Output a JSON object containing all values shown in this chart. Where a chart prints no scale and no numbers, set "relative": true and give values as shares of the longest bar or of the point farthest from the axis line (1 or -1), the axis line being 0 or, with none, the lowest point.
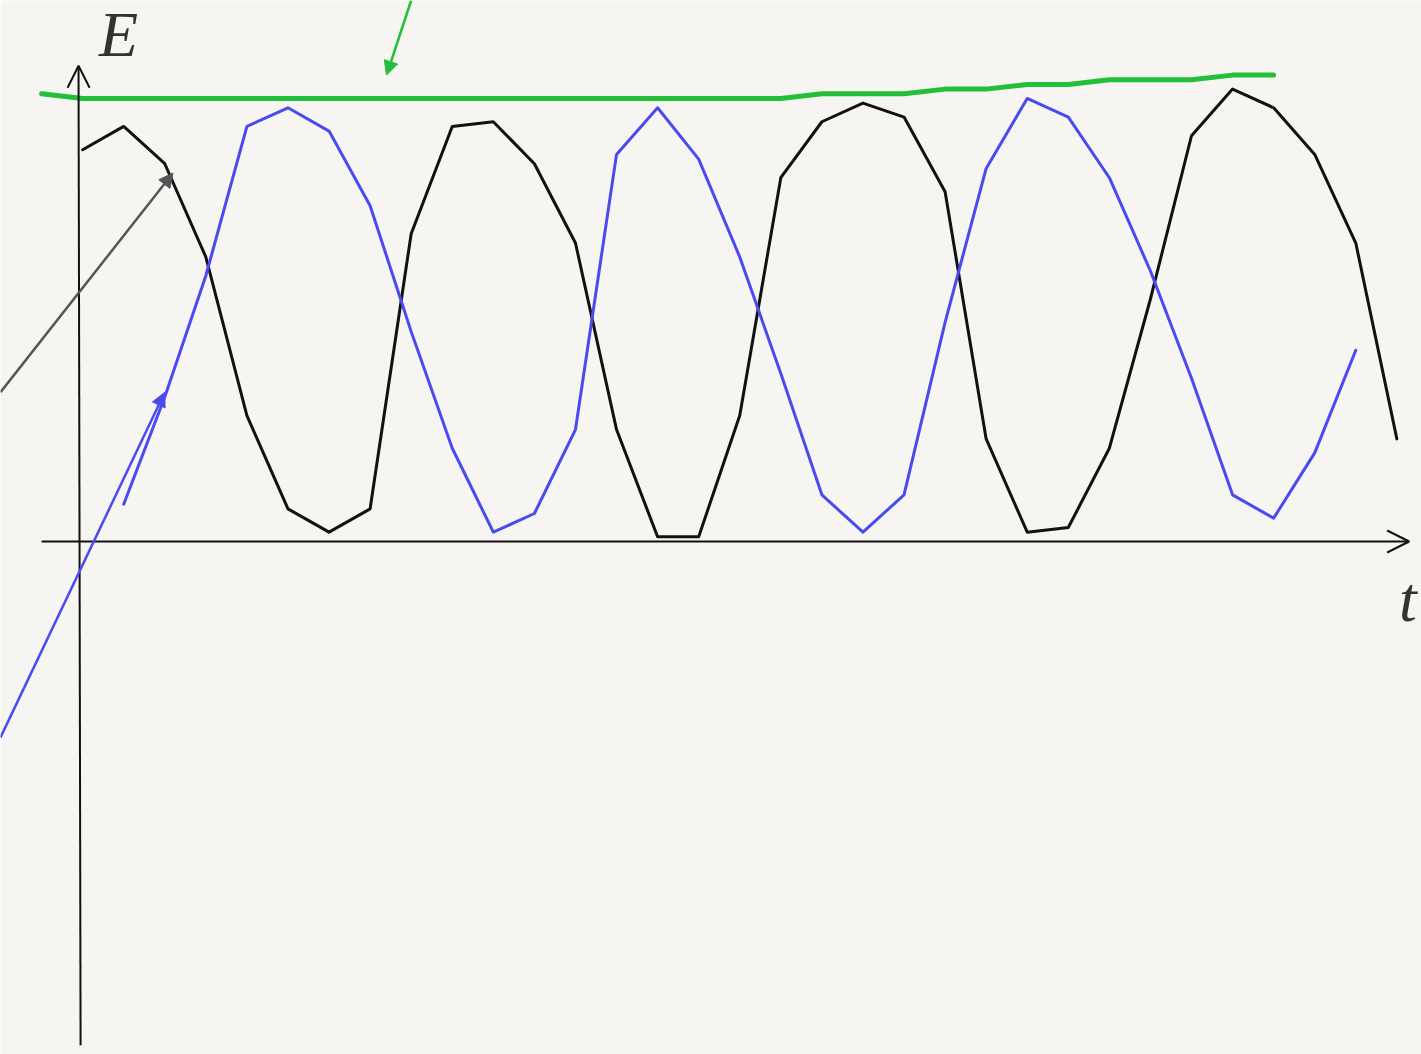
{
  "chart_data": {
    "type": "line",
    "relative": true,
    "xlabel": "t",
    "ylabel": "E",
    "line_style": "solid",
    "categories": [
      null,
      null,
      null,
      null,
      null,
      null,
      null,
      null,
      null,
      null,
      null,
      null,
      null,
      null,
      null,
      null,
      null,
      null,
      null,
      null,
      null,
      null,
      null,
      null,
      null,
      null,
      null,
      null,
      null,
      null,
      null,
      null,
      null,
      null
    ],
    "series": [
      {
        "color": "#111111",
        "values": [
          null,
          0.84,
          0.89,
          0.81,
          0.61,
          0.27,
          0.07,
          0.02,
          0.07,
          0.66,
          0.89,
          0.9,
          0.81,
          0.64,
          0.24,
          0.01,
          0.01,
          0.27,
          0.78,
          0.9,
          0.94,
          0.91,
          0.75,
          0.22,
          0.02,
          0.03,
          0.2,
          0.52,
          0.87,
          0.97,
          0.93,
          0.83,
          0.64,
          0.22
        ]
      },
      {
        "color": "#4a4af0",
        "values": [
          null,
          null,
          0.08,
          0.31,
          0.57,
          0.89,
          0.93,
          0.88,
          0.72,
          0.45,
          0.2,
          0.02,
          0.06,
          0.24,
          0.83,
          0.93,
          0.82,
          0.61,
          0.36,
          0.1,
          0.02,
          0.1,
          0.47,
          0.8,
          0.95,
          0.91,
          0.78,
          0.58,
          0.35,
          0.1,
          0.05,
          0.19,
          0.41,
          null
        ]
      },
      {
        "color": "#22c03a",
        "values": [
          0.96,
          0.95,
          0.95,
          0.95,
          0.95,
          0.95,
          0.95,
          0.95,
          0.95,
          0.95,
          0.95,
          0.95,
          0.95,
          0.95,
          0.95,
          0.95,
          0.95,
          0.95,
          0.95,
          0.96,
          0.96,
          0.96,
          0.97,
          0.97,
          0.98,
          0.98,
          0.99,
          0.99,
          0.99,
          1.0,
          1.0,
          null,
          null,
          null
        ]
      }
    ]
  }
}
